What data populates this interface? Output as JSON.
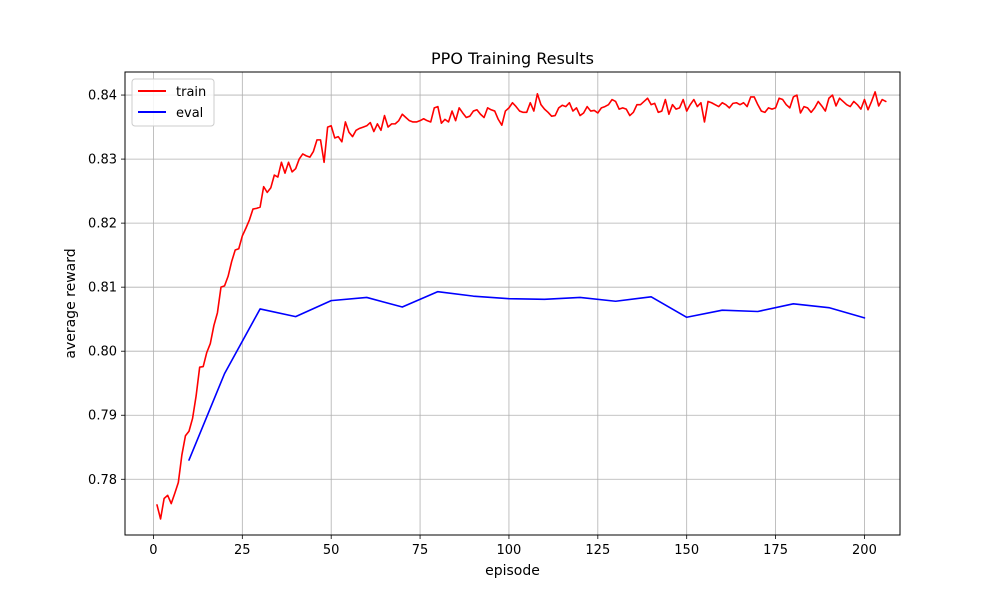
{
  "chart_data": {
    "type": "line",
    "title": "PPO Training Results",
    "xlabel": "episode",
    "ylabel": "average reward",
    "xlim": [
      -8,
      210
    ],
    "ylim": [
      0.7713,
      0.8436
    ],
    "xticks": [
      0,
      25,
      50,
      75,
      100,
      125,
      150,
      175,
      200
    ],
    "yticks": [
      0.78,
      0.79,
      0.8,
      0.81,
      0.82,
      0.83,
      0.84
    ],
    "xtick_labels": [
      "0",
      "25",
      "50",
      "75",
      "100",
      "125",
      "150",
      "175",
      "200"
    ],
    "ytick_labels": [
      "0.78",
      "0.79",
      "0.80",
      "0.81",
      "0.82",
      "0.83",
      "0.84"
    ],
    "grid": true,
    "legend_position": "upper-left",
    "series": [
      {
        "name": "train",
        "color": "#ff0000",
        "x_start": 1,
        "x_step": 1,
        "values": [
          0.776,
          0.7738,
          0.777,
          0.7775,
          0.7762,
          0.7778,
          0.7795,
          0.7838,
          0.7868,
          0.7875,
          0.7895,
          0.793,
          0.7975,
          0.7976,
          0.7998,
          0.8012,
          0.804,
          0.806,
          0.81,
          0.8102,
          0.8117,
          0.814,
          0.8158,
          0.816,
          0.818,
          0.8192,
          0.8205,
          0.8222,
          0.8223,
          0.8225,
          0.8257,
          0.8248,
          0.8255,
          0.8275,
          0.8272,
          0.8295,
          0.8278,
          0.8295,
          0.828,
          0.8285,
          0.83,
          0.8308,
          0.8305,
          0.8303,
          0.8312,
          0.833,
          0.833,
          0.8295,
          0.835,
          0.8352,
          0.8333,
          0.8335,
          0.8327,
          0.8358,
          0.8342,
          0.8335,
          0.8345,
          0.8348,
          0.835,
          0.8352,
          0.8357,
          0.8343,
          0.8355,
          0.8345,
          0.8368,
          0.835,
          0.8355,
          0.8355,
          0.836,
          0.837,
          0.8365,
          0.836,
          0.8358,
          0.8358,
          0.836,
          0.8363,
          0.836,
          0.8358,
          0.838,
          0.8382,
          0.8356,
          0.8362,
          0.8358,
          0.8375,
          0.836,
          0.838,
          0.8372,
          0.8365,
          0.8367,
          0.8375,
          0.8377,
          0.837,
          0.8365,
          0.838,
          0.8377,
          0.8375,
          0.8362,
          0.8353,
          0.8375,
          0.838,
          0.8388,
          0.8382,
          0.8375,
          0.8373,
          0.8373,
          0.8388,
          0.8375,
          0.8402,
          0.8385,
          0.8378,
          0.8373,
          0.8367,
          0.8368,
          0.838,
          0.8384,
          0.8382,
          0.8388,
          0.8375,
          0.838,
          0.8368,
          0.8372,
          0.8382,
          0.8375,
          0.8376,
          0.8372,
          0.838,
          0.8382,
          0.8385,
          0.8393,
          0.839,
          0.8378,
          0.838,
          0.8378,
          0.8368,
          0.8373,
          0.8385,
          0.8385,
          0.839,
          0.8395,
          0.8385,
          0.8387,
          0.8373,
          0.8375,
          0.8393,
          0.837,
          0.8385,
          0.8378,
          0.838,
          0.8393,
          0.8375,
          0.8385,
          0.8393,
          0.8382,
          0.8388,
          0.8358,
          0.839,
          0.8388,
          0.8385,
          0.8382,
          0.8388,
          0.8385,
          0.838,
          0.8387,
          0.8388,
          0.8385,
          0.8388,
          0.8382,
          0.8397,
          0.8397,
          0.8385,
          0.8375,
          0.8373,
          0.838,
          0.8378,
          0.838,
          0.8395,
          0.8393,
          0.8385,
          0.838,
          0.8397,
          0.84,
          0.8372,
          0.8382,
          0.838,
          0.8373,
          0.838,
          0.839,
          0.8383,
          0.8375,
          0.8395,
          0.84,
          0.8383,
          0.8395,
          0.839,
          0.8385,
          0.8382,
          0.839,
          0.8385,
          0.8378,
          0.8393,
          0.8377,
          0.839,
          0.8405,
          0.8383,
          0.8393,
          0.839
        ]
      },
      {
        "name": "eval",
        "color": "#0000ff",
        "x": [
          10,
          20,
          30,
          40,
          50,
          60,
          70,
          80,
          90,
          100,
          110,
          120,
          130,
          140,
          150,
          160,
          170,
          180,
          190,
          200
        ],
        "values": [
          0.783,
          0.7965,
          0.8066,
          0.8054,
          0.8079,
          0.8084,
          0.8069,
          0.8093,
          0.8086,
          0.8082,
          0.8081,
          0.8084,
          0.8078,
          0.8085,
          0.8053,
          0.8064,
          0.8062,
          0.8074,
          0.8068,
          0.8052
        ]
      }
    ]
  }
}
